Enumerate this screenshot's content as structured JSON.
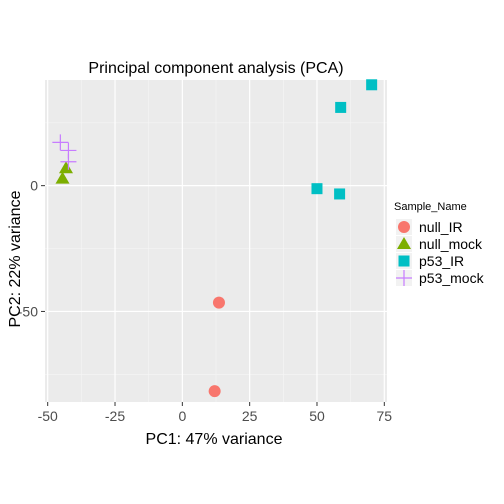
{
  "chart_data": {
    "type": "scatter",
    "title": "Principal component analysis (PCA)",
    "xlabel": "PC1: 47% variance",
    "ylabel": "PC2: 22% variance",
    "xlim": [
      -51,
      76
    ],
    "ylim": [
      -86,
      42
    ],
    "x_ticks": [
      -50,
      -25,
      0,
      25,
      50,
      75
    ],
    "x_tick_labels": [
      "-50",
      "-25",
      "0",
      "25",
      "50",
      "75"
    ],
    "y_ticks": [
      -50,
      0
    ],
    "y_tick_labels": [
      "-50",
      "0"
    ],
    "grid": true,
    "legend": {
      "title": "Sample_Name",
      "position": "right"
    },
    "series": [
      {
        "name": "null_IR",
        "shape": "circle",
        "color": "#F8766D",
        "points": [
          {
            "x": 13.6,
            "y": -46.5
          },
          {
            "x": 12.0,
            "y": -81.7
          }
        ]
      },
      {
        "name": "null_mock",
        "shape": "triangle",
        "color": "#7CAE00",
        "points": [
          {
            "x": -44.5,
            "y": 2.8
          },
          {
            "x": -43.2,
            "y": 6.9
          }
        ]
      },
      {
        "name": "p53_IR",
        "shape": "square",
        "color": "#00BFC4",
        "points": [
          {
            "x": 70.3,
            "y": 40.1
          },
          {
            "x": 58.8,
            "y": 31.1
          },
          {
            "x": 50.0,
            "y": -1.2
          },
          {
            "x": 58.4,
            "y": -3.3
          }
        ]
      },
      {
        "name": "p53_mock",
        "shape": "plus",
        "color": "#C77CFF",
        "points": [
          {
            "x": -45.3,
            "y": 17.2
          },
          {
            "x": -42.3,
            "y": 14.0
          },
          {
            "x": -42.3,
            "y": 9.5
          }
        ]
      }
    ]
  }
}
